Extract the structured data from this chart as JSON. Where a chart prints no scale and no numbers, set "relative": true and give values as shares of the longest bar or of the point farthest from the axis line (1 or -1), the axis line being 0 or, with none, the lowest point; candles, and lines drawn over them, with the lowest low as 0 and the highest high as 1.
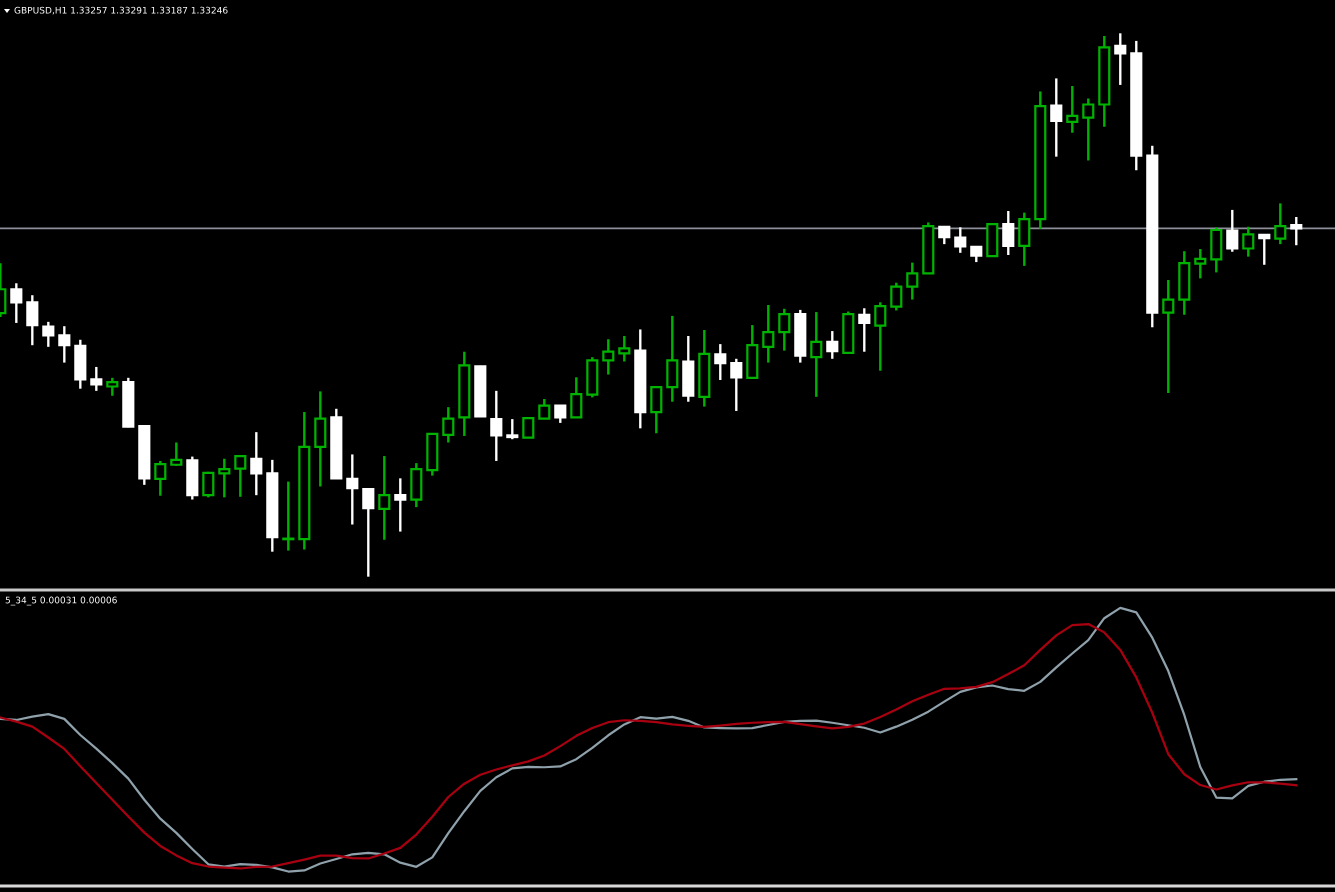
{
  "chart_data": [
    {
      "type": "candlestick",
      "title": "GBPUSD,H1 1.33257 1.33291 1.33187 1.33246",
      "relative": true,
      "categories": [
        null,
        null,
        null,
        null,
        null,
        null,
        null,
        null,
        null,
        null,
        null,
        null,
        null,
        null,
        null,
        null,
        null,
        null,
        null,
        null,
        null,
        null,
        null,
        null,
        null,
        null,
        null,
        null,
        null,
        null,
        null,
        null,
        null,
        null,
        null,
        null,
        null,
        null,
        null,
        null,
        null,
        null,
        null,
        null,
        null,
        null,
        null,
        null,
        null,
        null,
        null,
        null,
        null,
        null,
        null,
        null,
        null,
        null,
        null,
        null,
        null,
        null,
        null,
        null,
        null,
        null,
        null,
        null,
        null,
        null,
        null,
        null,
        null,
        null,
        null,
        null,
        null,
        null,
        null,
        null,
        null,
        null
      ],
      "ohlc": [
        [
          0.485,
          0.577,
          0.478,
          0.529
        ],
        [
          0.529,
          0.54,
          0.467,
          0.505
        ],
        [
          0.505,
          0.518,
          0.426,
          0.463
        ],
        [
          0.46,
          0.469,
          0.423,
          0.444
        ],
        [
          0.444,
          0.461,
          0.394,
          0.426
        ],
        [
          0.425,
          0.436,
          0.346,
          0.363
        ],
        [
          0.363,
          0.386,
          0.342,
          0.354
        ],
        [
          0.35,
          0.366,
          0.333,
          0.358
        ],
        [
          0.358,
          0.366,
          0.275,
          0.276
        ],
        [
          0.277,
          0.278,
          0.169,
          0.181
        ],
        [
          0.18,
          0.213,
          0.149,
          0.207
        ],
        [
          0.206,
          0.247,
          0.204,
          0.215
        ],
        [
          0.214,
          0.221,
          0.142,
          0.15
        ],
        [
          0.15,
          0.193,
          0.146,
          0.191
        ],
        [
          0.19,
          0.217,
          0.146,
          0.198
        ],
        [
          0.199,
          0.223,
          0.147,
          0.222
        ],
        [
          0.217,
          0.266,
          0.15,
          0.19
        ],
        [
          0.19,
          0.215,
          0.046,
          0.073
        ],
        [
          0.069,
          0.175,
          0.048,
          0.07
        ],
        [
          0.069,
          0.303,
          0.05,
          0.239
        ],
        [
          0.239,
          0.341,
          0.166,
          0.291
        ],
        [
          0.293,
          0.309,
          0.181,
          0.181
        ],
        [
          0.18,
          0.225,
          0.096,
          0.163
        ],
        [
          0.161,
          0.163,
          0.0,
          0.126
        ],
        [
          0.125,
          0.222,
          0.068,
          0.15
        ],
        [
          0.15,
          0.181,
          0.083,
          0.142
        ],
        [
          0.142,
          0.209,
          0.128,
          0.198
        ],
        [
          0.196,
          0.264,
          0.186,
          0.263
        ],
        [
          0.261,
          0.312,
          0.247,
          0.291
        ],
        [
          0.293,
          0.414,
          0.259,
          0.389
        ],
        [
          0.387,
          0.388,
          0.295,
          0.295
        ],
        [
          0.29,
          0.342,
          0.213,
          0.26
        ],
        [
          0.26,
          0.29,
          0.253,
          0.257
        ],
        [
          0.256,
          0.293,
          0.256,
          0.292
        ],
        [
          0.291,
          0.327,
          0.291,
          0.315
        ],
        [
          0.315,
          0.316,
          0.283,
          0.293
        ],
        [
          0.293,
          0.367,
          0.293,
          0.336
        ],
        [
          0.335,
          0.404,
          0.33,
          0.398
        ],
        [
          0.398,
          0.437,
          0.372,
          0.414
        ],
        [
          0.411,
          0.443,
          0.396,
          0.42
        ],
        [
          0.416,
          0.455,
          0.273,
          0.303
        ],
        [
          0.303,
          0.351,
          0.264,
          0.349
        ],
        [
          0.349,
          0.48,
          0.322,
          0.398
        ],
        [
          0.396,
          0.443,
          0.322,
          0.333
        ],
        [
          0.331,
          0.454,
          0.313,
          0.41
        ],
        [
          0.409,
          0.428,
          0.362,
          0.393
        ],
        [
          0.393,
          0.401,
          0.305,
          0.367
        ],
        [
          0.366,
          0.463,
          0.366,
          0.426
        ],
        [
          0.423,
          0.5,
          0.394,
          0.45
        ],
        [
          0.45,
          0.493,
          0.416,
          0.483
        ],
        [
          0.483,
          0.491,
          0.394,
          0.407
        ],
        [
          0.404,
          0.487,
          0.331,
          0.432
        ],
        [
          0.432,
          0.452,
          0.401,
          0.415
        ],
        [
          0.412,
          0.488,
          0.412,
          0.483
        ],
        [
          0.482,
          0.494,
          0.414,
          0.467
        ],
        [
          0.462,
          0.505,
          0.379,
          0.498
        ],
        [
          0.497,
          0.541,
          0.49,
          0.534
        ],
        [
          0.534,
          0.578,
          0.51,
          0.558
        ],
        [
          0.558,
          0.652,
          0.558,
          0.645
        ],
        [
          0.644,
          0.645,
          0.612,
          0.625
        ],
        [
          0.624,
          0.643,
          0.596,
          0.608
        ],
        [
          0.607,
          0.608,
          0.579,
          0.591
        ],
        [
          0.59,
          0.65,
          0.59,
          0.649
        ],
        [
          0.649,
          0.673,
          0.592,
          0.609
        ],
        [
          0.609,
          0.67,
          0.572,
          0.658
        ],
        [
          0.658,
          0.893,
          0.64,
          0.866
        ],
        [
          0.867,
          0.917,
          0.773,
          0.839
        ],
        [
          0.837,
          0.903,
          0.817,
          0.848
        ],
        [
          0.845,
          0.88,
          0.766,
          0.869
        ],
        [
          0.869,
          0.995,
          0.828,
          0.974
        ],
        [
          0.977,
          1.0,
          0.905,
          0.963
        ],
        [
          0.963,
          0.986,
          0.748,
          0.775
        ],
        [
          0.775,
          0.793,
          0.459,
          0.486
        ],
        [
          0.486,
          0.546,
          0.338,
          0.51
        ],
        [
          0.51,
          0.599,
          0.482,
          0.577
        ],
        [
          0.576,
          0.603,
          0.549,
          0.585
        ],
        [
          0.584,
          0.643,
          0.56,
          0.638
        ],
        [
          0.637,
          0.675,
          0.598,
          0.604
        ],
        [
          0.604,
          0.644,
          0.589,
          0.63
        ],
        [
          0.629,
          0.63,
          0.574,
          0.623
        ],
        [
          0.622,
          0.687,
          0.612,
          0.645
        ],
        [
          0.647,
          0.662,
          0.61,
          0.641
        ]
      ],
      "colors": [
        "#00b300",
        "#ffffff",
        "#ffffff",
        "#ffffff",
        "#ffffff",
        "#ffffff",
        "#ffffff",
        "#00b300",
        "#ffffff",
        "#ffffff",
        "#00b300",
        "#00b300",
        "#ffffff",
        "#00b300",
        "#00b300",
        "#00b300",
        "#ffffff",
        "#ffffff",
        "#00b300",
        "#00b300",
        "#00b300",
        "#ffffff",
        "#ffffff",
        "#ffffff",
        "#00b300",
        "#ffffff",
        "#00b300",
        "#00b300",
        "#00b300",
        "#00b300",
        "#ffffff",
        "#ffffff",
        "#ffffff",
        "#00b300",
        "#00b300",
        "#ffffff",
        "#00b300",
        "#00b300",
        "#00b300",
        "#00b300",
        "#ffffff",
        "#00b300",
        "#00b300",
        "#ffffff",
        "#00b300",
        "#ffffff",
        "#ffffff",
        "#00b300",
        "#00b300",
        "#00b300",
        "#ffffff",
        "#00b300",
        "#ffffff",
        "#00b300",
        "#ffffff",
        "#00b300",
        "#00b300",
        "#00b300",
        "#00b300",
        "#ffffff",
        "#ffffff",
        "#ffffff",
        "#00b300",
        "#ffffff",
        "#00b300",
        "#00b300",
        "#ffffff",
        "#00b300",
        "#00b300",
        "#00b300",
        "#ffffff",
        "#ffffff",
        "#ffffff",
        "#00b300",
        "#00b300",
        "#00b300",
        "#00b300",
        "#ffffff",
        "#00b300",
        "#ffffff",
        "#00b300",
        "#ffffff"
      ],
      "ref_lines": [
        {
          "axis": "y",
          "value": 0.641,
          "color": "#8c8f99"
        }
      ]
    },
    {
      "type": "line",
      "title": "5_34_5 0.00031 0.00006",
      "relative": true,
      "categories": [
        null,
        null,
        null,
        null,
        null,
        null,
        null,
        null,
        null,
        null,
        null,
        null,
        null,
        null,
        null,
        null,
        null,
        null,
        null,
        null,
        null,
        null,
        null,
        null,
        null,
        null,
        null,
        null,
        null,
        null,
        null,
        null,
        null,
        null,
        null,
        null,
        null,
        null,
        null,
        null,
        null,
        null,
        null,
        null,
        null,
        null,
        null,
        null,
        null,
        null,
        null,
        null,
        null,
        null,
        null,
        null,
        null,
        null,
        null,
        null,
        null,
        null,
        null,
        null,
        null,
        null,
        null,
        null,
        null,
        null,
        null,
        null,
        null,
        null,
        null,
        null,
        null,
        null,
        null,
        null,
        null,
        null
      ],
      "series": [
        {
          "color": "#8fa1ab",
          "values": [
            0.601,
            0.597,
            0.609,
            0.618,
            0.601,
            0.543,
            0.494,
            0.442,
            0.386,
            0.31,
            0.242,
            0.191,
            0.133,
            0.078,
            0.07,
            0.079,
            0.076,
            0.067,
            0.052,
            0.056,
            0.081,
            0.097,
            0.114,
            0.119,
            0.114,
            0.084,
            0.069,
            0.103,
            0.19,
            0.269,
            0.342,
            0.391,
            0.423,
            0.428,
            0.427,
            0.43,
            0.456,
            0.497,
            0.542,
            0.581,
            0.607,
            0.602,
            0.608,
            0.594,
            0.57,
            0.568,
            0.567,
            0.568,
            0.579,
            0.59,
            0.594,
            0.595,
            0.587,
            0.578,
            0.569,
            0.552,
            0.573,
            0.598,
            0.627,
            0.663,
            0.698,
            0.714,
            0.721,
            0.708,
            0.702,
            0.734,
            0.786,
            0.836,
            0.884,
            0.963,
            1.0,
            0.984,
            0.893,
            0.773,
            0.615,
            0.428,
            0.318,
            0.315,
            0.36,
            0.375,
            0.382,
            0.384
          ]
        },
        {
          "color": "#a80010",
          "values": [
            0.606,
            0.591,
            0.573,
            0.534,
            0.493,
            0.431,
            0.37,
            0.31,
            0.25,
            0.192,
            0.144,
            0.11,
            0.082,
            0.07,
            0.066,
            0.063,
            0.069,
            0.07,
            0.082,
            0.095,
            0.109,
            0.109,
            0.1,
            0.099,
            0.117,
            0.137,
            0.185,
            0.249,
            0.32,
            0.368,
            0.4,
            0.419,
            0.434,
            0.448,
            0.469,
            0.503,
            0.54,
            0.568,
            0.589,
            0.596,
            0.594,
            0.589,
            0.581,
            0.576,
            0.572,
            0.577,
            0.583,
            0.587,
            0.589,
            0.59,
            0.582,
            0.574,
            0.567,
            0.572,
            0.584,
            0.608,
            0.635,
            0.664,
            0.688,
            0.709,
            0.711,
            0.716,
            0.733,
            0.762,
            0.794,
            0.849,
            0.901,
            0.938,
            0.942,
            0.912,
            0.849,
            0.75,
            0.623,
            0.474,
            0.402,
            0.363,
            0.347,
            0.362,
            0.373,
            0.373,
            0.368,
            0.362
          ]
        }
      ]
    }
  ]
}
